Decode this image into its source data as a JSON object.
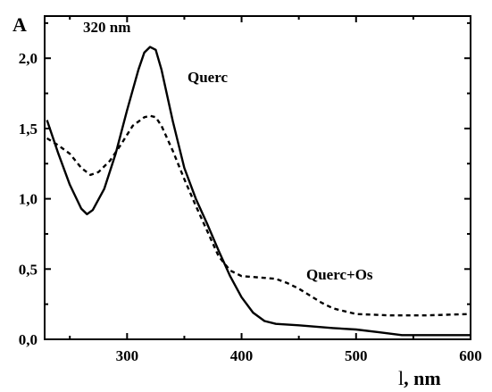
{
  "chart_data": {
    "type": "line",
    "title": "",
    "ylabel": "A",
    "xlabel_symbol": "l",
    "xlabel_unit": ", nm",
    "xlim": [
      228,
      600
    ],
    "ylim": [
      0,
      2.3
    ],
    "x_ticks": [
      300,
      400,
      500,
      600
    ],
    "x_tick_labels": [
      "300",
      "400",
      "500",
      "600"
    ],
    "y_ticks": [
      0,
      0.5,
      1.0,
      1.5,
      2.0
    ],
    "y_tick_labels": [
      "0,0",
      "0,5",
      "1,0",
      "1,5",
      "2,0"
    ],
    "grid": false,
    "annotations": [
      {
        "text": "320 nm",
        "x": 320,
        "y": 2.26
      },
      {
        "text": "Querc",
        "x": 340,
        "y": 1.85
      },
      {
        "text": "Querc+Os",
        "x": 470,
        "y": 0.45
      }
    ],
    "series": [
      {
        "name": "Querc",
        "style": "solid",
        "points": [
          [
            230,
            1.56
          ],
          [
            240,
            1.32
          ],
          [
            250,
            1.1
          ],
          [
            260,
            0.93
          ],
          [
            265,
            0.89
          ],
          [
            270,
            0.92
          ],
          [
            280,
            1.07
          ],
          [
            290,
            1.32
          ],
          [
            300,
            1.63
          ],
          [
            310,
            1.92
          ],
          [
            315,
            2.04
          ],
          [
            320,
            2.08
          ],
          [
            325,
            2.06
          ],
          [
            330,
            1.92
          ],
          [
            340,
            1.55
          ],
          [
            350,
            1.22
          ],
          [
            360,
            1.0
          ],
          [
            370,
            0.82
          ],
          [
            380,
            0.63
          ],
          [
            390,
            0.45
          ],
          [
            400,
            0.3
          ],
          [
            410,
            0.19
          ],
          [
            420,
            0.13
          ],
          [
            430,
            0.11
          ],
          [
            450,
            0.1
          ],
          [
            480,
            0.08
          ],
          [
            500,
            0.07
          ],
          [
            520,
            0.05
          ],
          [
            540,
            0.03
          ],
          [
            560,
            0.03
          ],
          [
            600,
            0.03
          ]
        ]
      },
      {
        "name": "Querc+Os",
        "style": "dashed",
        "points": [
          [
            230,
            1.43
          ],
          [
            240,
            1.38
          ],
          [
            250,
            1.32
          ],
          [
            260,
            1.22
          ],
          [
            268,
            1.17
          ],
          [
            275,
            1.19
          ],
          [
            285,
            1.27
          ],
          [
            295,
            1.39
          ],
          [
            305,
            1.52
          ],
          [
            315,
            1.58
          ],
          [
            320,
            1.59
          ],
          [
            325,
            1.58
          ],
          [
            330,
            1.52
          ],
          [
            340,
            1.34
          ],
          [
            350,
            1.14
          ],
          [
            360,
            0.95
          ],
          [
            370,
            0.77
          ],
          [
            380,
            0.59
          ],
          [
            390,
            0.49
          ],
          [
            400,
            0.45
          ],
          [
            415,
            0.44
          ],
          [
            430,
            0.43
          ],
          [
            440,
            0.4
          ],
          [
            450,
            0.36
          ],
          [
            460,
            0.31
          ],
          [
            470,
            0.26
          ],
          [
            480,
            0.22
          ],
          [
            500,
            0.18
          ],
          [
            530,
            0.17
          ],
          [
            560,
            0.17
          ],
          [
            600,
            0.18
          ]
        ]
      }
    ]
  }
}
